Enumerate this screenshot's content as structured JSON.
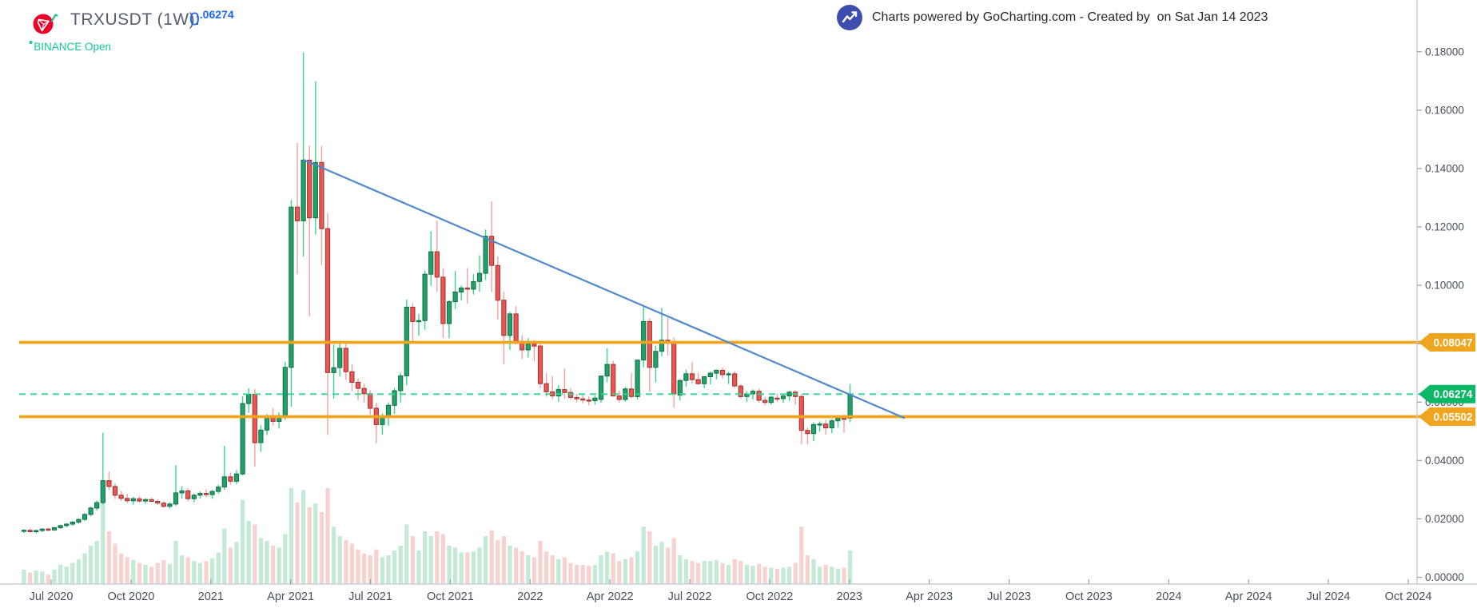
{
  "header": {
    "symbol_title": "TRXUSDT (1W):",
    "price_int": "0",
    "price_dec": ".06274",
    "exchange_status": "BINANCE Open",
    "status_bullet": "•",
    "attribution": "Charts powered by GoCharting.com - Created by  on Sat Jan 14 2023",
    "logo": "tron-icon",
    "attribution_icon": "trend-up-icon"
  },
  "colors": {
    "accent_blue_price": "#1c66f0",
    "exchange_teal": "#13c99c",
    "tron_red": "#eb0029",
    "attrib_indigo": "#3d4eae",
    "candle_up_fill": "#1fa26a",
    "candle_up_stroke": "#156c46",
    "candle_up_wick": "#3bd68c",
    "candle_down_fill": "#ee5450",
    "candle_down_stroke": "#943634",
    "candle_down_wick": "#f59f9b",
    "volume_up": "#c2ead4",
    "volume_down": "#f8d2cf",
    "line_orange": "#f0a51f",
    "line_dashed_green": "#35d493",
    "badge_green": "#0cb765",
    "trendline_blue": "#5089cc",
    "axis_line": "#ccd0d7",
    "axis_text": "#474f5e"
  },
  "chart_data": {
    "type": "candlestick",
    "symbol": "TRXUSDT",
    "interval": "1W",
    "ylim": [
      0,
      0.18
    ],
    "grid": "off",
    "y_axis_labels": [
      "0.00000",
      "0.02000",
      "0.04000",
      "0.06000",
      "0.08000",
      "0.10000",
      "0.12000",
      "0.14000",
      "0.16000",
      "0.18000"
    ],
    "x_axis_labels": [
      "Jul 2020",
      "Oct 2020",
      "2021",
      "Apr 2021",
      "Jul 2021",
      "Oct 2021",
      "2022",
      "Apr 2022",
      "Jul 2022",
      "Oct 2022",
      "2023",
      "Apr 2023",
      "Jul 2023",
      "Oct 2023",
      "2024",
      "Apr 2024",
      "Jul 2024",
      "Oct 2024"
    ],
    "volume_unit": "relative 0-1",
    "candles_format": [
      "open",
      "high",
      "low",
      "close",
      "volume_rel"
    ],
    "candles": [
      [
        0.0158,
        0.0165,
        0.0151,
        0.0161,
        0.15
      ],
      [
        0.0161,
        0.0167,
        0.0153,
        0.0156,
        0.12
      ],
      [
        0.0156,
        0.0163,
        0.015,
        0.016,
        0.14
      ],
      [
        0.016,
        0.0168,
        0.0155,
        0.0165,
        0.13
      ],
      [
        0.0165,
        0.017,
        0.0158,
        0.0162,
        0.1
      ],
      [
        0.0162,
        0.0172,
        0.0159,
        0.017,
        0.15
      ],
      [
        0.017,
        0.018,
        0.0165,
        0.0177,
        0.2
      ],
      [
        0.0177,
        0.0185,
        0.0171,
        0.0182,
        0.18
      ],
      [
        0.0182,
        0.0192,
        0.0176,
        0.0189,
        0.22
      ],
      [
        0.0189,
        0.0202,
        0.0183,
        0.0198,
        0.26
      ],
      [
        0.0198,
        0.022,
        0.0192,
        0.0215,
        0.32
      ],
      [
        0.0215,
        0.0242,
        0.0209,
        0.0237,
        0.4
      ],
      [
        0.0237,
        0.0263,
        0.0229,
        0.0256,
        0.45
      ],
      [
        0.0256,
        0.0495,
        0.0249,
        0.0331,
        0.9
      ],
      [
        0.0331,
        0.0362,
        0.0298,
        0.0311,
        0.55
      ],
      [
        0.0311,
        0.0322,
        0.0268,
        0.0281,
        0.42
      ],
      [
        0.0281,
        0.0296,
        0.0261,
        0.027,
        0.32
      ],
      [
        0.027,
        0.0286,
        0.0254,
        0.0262,
        0.28
      ],
      [
        0.0262,
        0.0276,
        0.0249,
        0.0269,
        0.25
      ],
      [
        0.0269,
        0.0277,
        0.0256,
        0.0261,
        0.22
      ],
      [
        0.0261,
        0.0271,
        0.0251,
        0.0266,
        0.2
      ],
      [
        0.0266,
        0.0273,
        0.0257,
        0.026,
        0.18
      ],
      [
        0.026,
        0.0267,
        0.0247,
        0.0254,
        0.22
      ],
      [
        0.0254,
        0.0261,
        0.0237,
        0.0243,
        0.25
      ],
      [
        0.0243,
        0.0257,
        0.0235,
        0.0251,
        0.21
      ],
      [
        0.0251,
        0.0384,
        0.0245,
        0.0289,
        0.45
      ],
      [
        0.0289,
        0.0312,
        0.0269,
        0.0296,
        0.3
      ],
      [
        0.0296,
        0.0304,
        0.0261,
        0.0269,
        0.28
      ],
      [
        0.0269,
        0.0287,
        0.0257,
        0.0281,
        0.24
      ],
      [
        0.0281,
        0.0294,
        0.0269,
        0.0287,
        0.22
      ],
      [
        0.0287,
        0.0301,
        0.0274,
        0.0283,
        0.24
      ],
      [
        0.0283,
        0.0299,
        0.0269,
        0.0294,
        0.27
      ],
      [
        0.0294,
        0.0317,
        0.0287,
        0.0309,
        0.33
      ],
      [
        0.0309,
        0.045,
        0.0299,
        0.0344,
        0.58
      ],
      [
        0.0344,
        0.0359,
        0.0317,
        0.0329,
        0.38
      ],
      [
        0.0329,
        0.0367,
        0.0319,
        0.0354,
        0.44
      ],
      [
        0.0354,
        0.0619,
        0.0349,
        0.0595,
        0.88
      ],
      [
        0.0595,
        0.0647,
        0.0563,
        0.0627,
        0.66
      ],
      [
        0.0627,
        0.0644,
        0.0379,
        0.0461,
        0.62
      ],
      [
        0.0461,
        0.0521,
        0.0429,
        0.0504,
        0.48
      ],
      [
        0.0504,
        0.0559,
        0.0487,
        0.0547,
        0.45
      ],
      [
        0.0547,
        0.0579,
        0.0519,
        0.0534,
        0.4
      ],
      [
        0.0534,
        0.0564,
        0.0509,
        0.0551,
        0.38
      ],
      [
        0.0551,
        0.0738,
        0.0539,
        0.0719,
        0.52
      ],
      [
        0.0719,
        0.1292,
        0.0584,
        0.1268,
        1.0
      ],
      [
        0.1268,
        0.1488,
        0.1038,
        0.1221,
        0.85
      ],
      [
        0.1221,
        0.1797,
        0.1098,
        0.1429,
        0.98
      ],
      [
        0.1429,
        0.1478,
        0.0894,
        0.1231,
        0.8
      ],
      [
        0.1231,
        0.1699,
        0.1174,
        0.1421,
        0.84
      ],
      [
        0.1421,
        0.1477,
        0.1068,
        0.1194,
        0.75
      ],
      [
        0.1194,
        0.1247,
        0.0488,
        0.0701,
        1.0
      ],
      [
        0.0701,
        0.0797,
        0.0612,
        0.0718,
        0.6
      ],
      [
        0.0718,
        0.0801,
        0.0688,
        0.0784,
        0.5
      ],
      [
        0.0784,
        0.0799,
        0.0676,
        0.0704,
        0.46
      ],
      [
        0.0704,
        0.0729,
        0.0638,
        0.0668,
        0.42
      ],
      [
        0.0668,
        0.0681,
        0.0607,
        0.0647,
        0.36
      ],
      [
        0.0647,
        0.0663,
        0.0598,
        0.0629,
        0.32
      ],
      [
        0.0629,
        0.0641,
        0.0557,
        0.0579,
        0.3
      ],
      [
        0.0579,
        0.0598,
        0.0459,
        0.0523,
        0.36
      ],
      [
        0.0523,
        0.0561,
        0.0488,
        0.0547,
        0.28
      ],
      [
        0.0547,
        0.0599,
        0.0519,
        0.0589,
        0.3
      ],
      [
        0.0589,
        0.0649,
        0.0559,
        0.0639,
        0.35
      ],
      [
        0.0639,
        0.0701,
        0.0599,
        0.069,
        0.4
      ],
      [
        0.069,
        0.0951,
        0.0658,
        0.0925,
        0.62
      ],
      [
        0.0925,
        0.0939,
        0.0801,
        0.0876,
        0.5
      ],
      [
        0.0876,
        0.0902,
        0.0828,
        0.0879,
        0.35
      ],
      [
        0.0879,
        0.1051,
        0.0848,
        0.1038,
        0.55
      ],
      [
        0.1038,
        0.1185,
        0.0998,
        0.1115,
        0.5
      ],
      [
        0.1115,
        0.1221,
        0.0978,
        0.1028,
        0.55
      ],
      [
        0.1028,
        0.1059,
        0.082,
        0.0869,
        0.52
      ],
      [
        0.0869,
        0.0949,
        0.0819,
        0.0944,
        0.4
      ],
      [
        0.0944,
        0.1049,
        0.0919,
        0.0977,
        0.38
      ],
      [
        0.0977,
        0.0999,
        0.0948,
        0.0991,
        0.33
      ],
      [
        0.0991,
        0.1059,
        0.0938,
        0.0987,
        0.33
      ],
      [
        0.0987,
        0.1039,
        0.0968,
        0.1013,
        0.34
      ],
      [
        0.1013,
        0.1103,
        0.0978,
        0.1041,
        0.38
      ],
      [
        0.1041,
        0.1191,
        0.1018,
        0.1168,
        0.5
      ],
      [
        0.1168,
        0.1288,
        0.0977,
        0.1068,
        0.56
      ],
      [
        0.1068,
        0.1099,
        0.0883,
        0.0949,
        0.46
      ],
      [
        0.0949,
        0.0979,
        0.0729,
        0.0828,
        0.5
      ],
      [
        0.0828,
        0.0909,
        0.0779,
        0.0902,
        0.4
      ],
      [
        0.0902,
        0.0929,
        0.0797,
        0.0808,
        0.38
      ],
      [
        0.0808,
        0.0829,
        0.0748,
        0.0779,
        0.34
      ],
      [
        0.0779,
        0.0819,
        0.0753,
        0.0799,
        0.3
      ],
      [
        0.0799,
        0.0811,
        0.0739,
        0.0792,
        0.28
      ],
      [
        0.0792,
        0.0799,
        0.0648,
        0.0663,
        0.45
      ],
      [
        0.0663,
        0.0699,
        0.0618,
        0.0635,
        0.34
      ],
      [
        0.0635,
        0.0689,
        0.061,
        0.0621,
        0.3
      ],
      [
        0.0621,
        0.0658,
        0.0601,
        0.0643,
        0.26
      ],
      [
        0.0643,
        0.0715,
        0.0612,
        0.0633,
        0.28
      ],
      [
        0.0633,
        0.0648,
        0.0608,
        0.0616,
        0.22
      ],
      [
        0.0616,
        0.0629,
        0.0599,
        0.0611,
        0.2
      ],
      [
        0.0611,
        0.0624,
        0.0596,
        0.0607,
        0.2
      ],
      [
        0.0607,
        0.0619,
        0.0589,
        0.0605,
        0.19
      ],
      [
        0.0605,
        0.0622,
        0.0591,
        0.0614,
        0.2
      ],
      [
        0.0609,
        0.0691,
        0.0598,
        0.0689,
        0.3
      ],
      [
        0.0689,
        0.0784,
        0.0668,
        0.0729,
        0.34
      ],
      [
        0.0729,
        0.0741,
        0.0619,
        0.0621,
        0.32
      ],
      [
        0.0621,
        0.0639,
        0.0598,
        0.0609,
        0.24
      ],
      [
        0.0609,
        0.0652,
        0.0601,
        0.0645,
        0.26
      ],
      [
        0.0645,
        0.0699,
        0.0612,
        0.0619,
        0.28
      ],
      [
        0.0619,
        0.0746,
        0.0609,
        0.0744,
        0.34
      ],
      [
        0.0744,
        0.0931,
        0.0719,
        0.0876,
        0.6
      ],
      [
        0.0876,
        0.0887,
        0.0635,
        0.0719,
        0.55
      ],
      [
        0.0719,
        0.0793,
        0.0668,
        0.0774,
        0.4
      ],
      [
        0.0774,
        0.0923,
        0.0756,
        0.0812,
        0.44
      ],
      [
        0.0812,
        0.0889,
        0.0759,
        0.0804,
        0.38
      ],
      [
        0.0804,
        0.0821,
        0.0581,
        0.0628,
        0.48
      ],
      [
        0.0624,
        0.0678,
        0.0606,
        0.0674,
        0.3
      ],
      [
        0.0674,
        0.0711,
        0.0652,
        0.0697,
        0.26
      ],
      [
        0.0697,
        0.0738,
        0.0663,
        0.0677,
        0.24
      ],
      [
        0.0677,
        0.0701,
        0.0659,
        0.0663,
        0.22
      ],
      [
        0.0663,
        0.0689,
        0.0648,
        0.0687,
        0.24
      ],
      [
        0.0687,
        0.0705,
        0.0661,
        0.0699,
        0.24
      ],
      [
        0.0699,
        0.0712,
        0.0678,
        0.0709,
        0.25
      ],
      [
        0.0709,
        0.0718,
        0.0681,
        0.0694,
        0.22
      ],
      [
        0.0694,
        0.0704,
        0.0662,
        0.0697,
        0.2
      ],
      [
        0.0697,
        0.0706,
        0.0649,
        0.0655,
        0.26
      ],
      [
        0.0655,
        0.0662,
        0.0612,
        0.0619,
        0.24
      ],
      [
        0.0619,
        0.0637,
        0.0601,
        0.0628,
        0.2
      ],
      [
        0.0628,
        0.0644,
        0.0609,
        0.0637,
        0.19
      ],
      [
        0.0637,
        0.0646,
        0.0598,
        0.0606,
        0.21
      ],
      [
        0.0606,
        0.0618,
        0.0589,
        0.0599,
        0.18
      ],
      [
        0.0599,
        0.0621,
        0.0591,
        0.0617,
        0.17
      ],
      [
        0.0614,
        0.0629,
        0.0601,
        0.0612,
        0.16
      ],
      [
        0.0612,
        0.0626,
        0.0598,
        0.0621,
        0.17
      ],
      [
        0.0621,
        0.0639,
        0.0604,
        0.0634,
        0.18
      ],
      [
        0.0634,
        0.0641,
        0.0591,
        0.0619,
        0.22
      ],
      [
        0.0619,
        0.0628,
        0.0456,
        0.0503,
        0.6
      ],
      [
        0.0503,
        0.0512,
        0.0455,
        0.0492,
        0.3
      ],
      [
        0.0492,
        0.0531,
        0.0466,
        0.0523,
        0.26
      ],
      [
        0.0523,
        0.0534,
        0.0498,
        0.0525,
        0.18
      ],
      [
        0.0525,
        0.0538,
        0.0489,
        0.0512,
        0.2
      ],
      [
        0.0512,
        0.0541,
        0.0494,
        0.0536,
        0.18
      ],
      [
        0.0536,
        0.0549,
        0.0512,
        0.0545,
        0.16
      ],
      [
        0.0545,
        0.0557,
        0.0495,
        0.0541,
        0.17
      ],
      [
        0.0545,
        0.0662,
        0.0531,
        0.0627,
        0.35
      ]
    ],
    "annotations": {
      "resistance_line": {
        "price": 0.08047,
        "label": "0.08047",
        "style": "solid-orange"
      },
      "support_line": {
        "price": 0.05502,
        "label": "0.05502",
        "style": "solid-orange"
      },
      "last_price_line": {
        "price": 0.06274,
        "label": "0.06274",
        "style": "dashed-green"
      },
      "trendline": {
        "x1_week": 46,
        "y1_price": 0.143,
        "x2_week": 145,
        "y2_price": 0.0545,
        "style": "solid-blue"
      }
    },
    "legend_position": "none",
    "title": "TRXUSDT (1W)"
  }
}
